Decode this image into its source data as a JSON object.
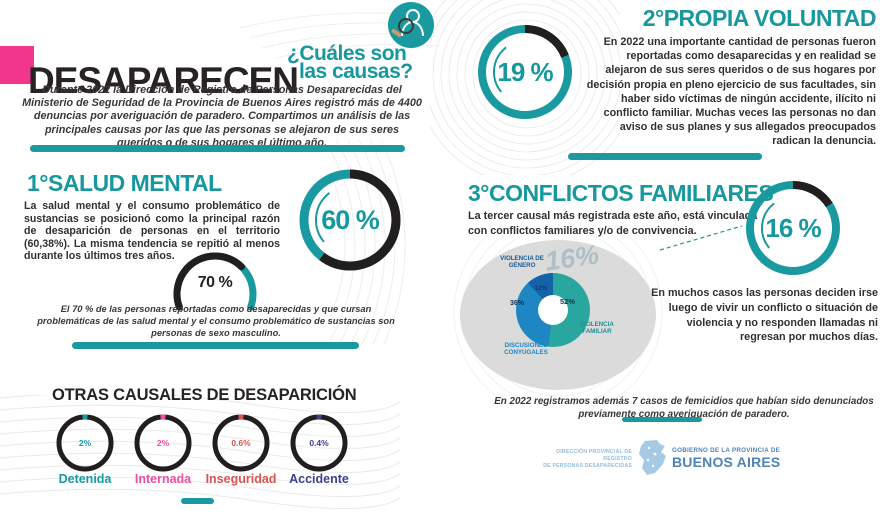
{
  "meta": {
    "colors": {
      "teal": "#17989e",
      "ink": "#272324",
      "pink_accent": "#f2368e",
      "gray_circle": "#dbdbdb",
      "watermark_gray": "#aebfc6",
      "footer_blue": "#4e83b5",
      "footer_light_blue": "#93bbda"
    },
    "icons": {
      "logo": "magnifier-person-icon",
      "map": "buenos-aires-province-map-icon"
    }
  },
  "header": {
    "title": "DESAPARECEN",
    "subtitle_line1": "¿Cuáles son",
    "subtitle_line2": "las causas?",
    "intro": "Durante 2022 la Dirección de Registro de Personas Desaparecidas del Ministerio de Seguridad de la Provincia de Buenos Aires registró más de 4400 denuncias por averiguación de paradero. Compartimos un análisis de las principales causas por las que las personas se alejaron de sus seres queridos o de sus hogares el último año."
  },
  "sections": {
    "salud_mental": {
      "heading": "1°SALUD MENTAL",
      "body": "La salud mental y el consumo problemático de sustancias se posicionó como la principal razón de desaparición de personas en el territorio (60,38%). La misma tendencia se repitió al menos durante los últimos tres años.",
      "note": "El 70 % de las personas reportadas como desaparecidas y que cursan problemáticas de las salud mental y el consumo problemático de sustancias son personas de sexo masculino."
    },
    "propia_voluntad": {
      "heading": "2°PROPIA VOLUNTAD",
      "body": "En 2022 una importante cantidad de personas fueron reportadas como desaparecidas y en realidad se alejaron de sus seres queridos o de sus hogares por decisión propia en pleno ejercicio de sus facultades, sin haber sido víctimas de ningún accidente, ilícito ni conflicto familiar. Muchas veces las personas no dan aviso de sus planes y sus allegados preocupados radican la denuncia."
    },
    "conflictos_familiares": {
      "heading": "3°CONFLICTOS FAMILIARES",
      "body": "La tercer causal más registrada este año, está vinculada con conflictos familiares y/o de convivencia.",
      "note": "En muchos casos las personas deciden irse luego de vivir un conflicto o situación de violencia y no responden llamadas ni regresan por muchos días.",
      "watermark": "16%"
    },
    "otras_causales": {
      "heading": "OTRAS CAUSALES DE DESAPARICIÓN"
    },
    "femicidios_note": "En 2022 registramos además 7 casos de femicidios que habían sido denunciados previamente como averiguación de paradero."
  },
  "footer": {
    "org_line1": "DIRECCIÓN PROVINCIAL DE REGISTRO",
    "org_line2": "DE PERSONAS DESAPARECIDAS",
    "gov_line1": "GOBIERNO DE LA PROVINCIA DE",
    "gov_line2": "BUENOS AIRES"
  },
  "chart_data": [
    {
      "id": "donut-salud-mental",
      "type": "donut",
      "title": "1°SALUD MENTAL",
      "value": 60.38,
      "display": "60 %",
      "arc_color": "#221e1f",
      "rest_color": "#1a9aa0"
    },
    {
      "id": "gauge-sexo-masculino",
      "type": "gauge",
      "value": 70,
      "display": "70 %",
      "arc_color": "#221e1f",
      "rest_color": "#1a9aa0"
    },
    {
      "id": "donut-propia-voluntad",
      "type": "donut",
      "title": "2°PROPIA VOLUNTAD",
      "value": 19,
      "display": "19 %",
      "arc_color": "#221e1f",
      "rest_color": "#1a9aa0"
    },
    {
      "id": "donut-conflictos-familiares",
      "type": "donut",
      "title": "3°CONFLICTOS FAMILIARES",
      "value": 16,
      "display": "16 %",
      "arc_color": "#221e1f",
      "rest_color": "#1a9aa0"
    },
    {
      "id": "pie-conflictos-breakdown",
      "type": "pie",
      "slices": [
        {
          "label": "VIOLENCIA FAMILIAR",
          "value": 52,
          "display": "52%",
          "color": "#2aa6a1",
          "label_color": "#1d8f96"
        },
        {
          "label": "DISCUSIONES CONYUGALES",
          "value": 36,
          "display": "36%",
          "color": "#1f86c4",
          "label_color": "#1f86c4"
        },
        {
          "label": "VIOLENCIA DE GÉNERO",
          "value": 12,
          "display": "12%",
          "color": "#1562a8",
          "label_color": "#1a5a96"
        }
      ]
    },
    {
      "id": "otras-causales-donuts",
      "type": "bar",
      "title": "OTRAS CAUSALES DE DESAPARICIÓN",
      "items": [
        {
          "label": "Detenida",
          "value": 2,
          "display": "2%",
          "color": "#1799a0"
        },
        {
          "label": "Internada",
          "value": 2,
          "display": "2%",
          "color": "#ee4f9f"
        },
        {
          "label": "Inseguridad",
          "value": 0.6,
          "display": "0.6%",
          "color": "#d9534f"
        },
        {
          "label": "Accidente",
          "value": 0.4,
          "display": "0.4%",
          "color": "#3d4090"
        }
      ]
    }
  ]
}
